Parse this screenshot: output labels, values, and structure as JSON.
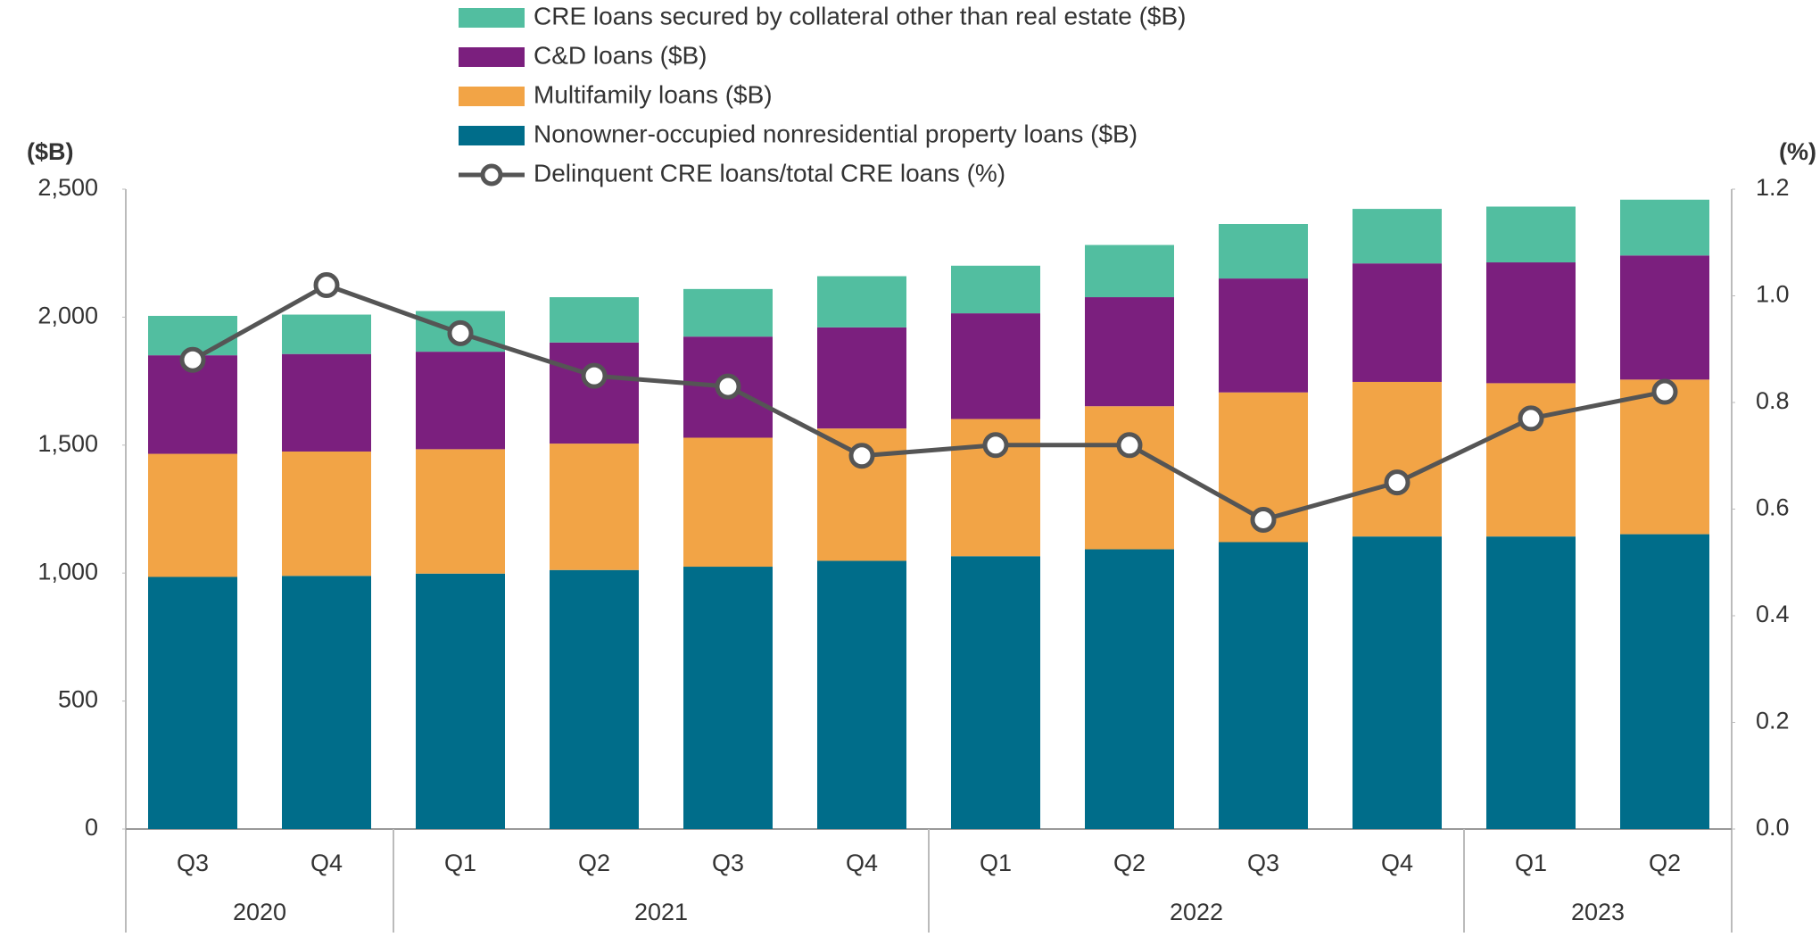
{
  "chart_data": {
    "type": "bar",
    "stacked": true,
    "y_axis_label": "($B)",
    "y2_axis_label": "(%)",
    "categories": [
      "Q3",
      "Q4",
      "Q1",
      "Q2",
      "Q3",
      "Q4",
      "Q1",
      "Q2",
      "Q3",
      "Q4",
      "Q1",
      "Q2"
    ],
    "years": [
      "2020",
      "2020",
      "2021",
      "2021",
      "2021",
      "2021",
      "2022",
      "2022",
      "2022",
      "2022",
      "2023",
      "2023"
    ],
    "ylim": [
      0,
      2500
    ],
    "yticks": [
      0,
      500,
      {
        "value": 1000,
        "label": "1,000"
      },
      {
        "value": 1500,
        "label": "1,500"
      },
      {
        "value": 2000,
        "label": "2,000"
      },
      {
        "value": 2500,
        "label": "2,500"
      }
    ],
    "y2lim": [
      0,
      1.2
    ],
    "y2ticks": [
      {
        "value": 0,
        "label": "0.0"
      },
      0.2,
      0.4,
      0.6,
      0.8,
      {
        "value": 1,
        "label": "1.0"
      },
      1.2
    ],
    "grid": false,
    "series": [
      {
        "name": "Nonowner-occupied nonresidential property loans ($B)",
        "color": "#006d8a",
        "values": [
          985,
          989,
          998,
          1012,
          1025,
          1048,
          1066,
          1093,
          1121,
          1143,
          1143,
          1152
        ]
      },
      {
        "name": "Multifamily loans ($B)",
        "color": "#f2a446",
        "values": [
          481,
          486,
          486,
          494,
          504,
          517,
          536,
          559,
          585,
          604,
          599,
          604
        ]
      },
      {
        "name": "C&D loans ($B)",
        "color": "#7b1f7e",
        "values": [
          385,
          381,
          381,
          395,
          395,
          395,
          413,
          426,
          445,
          463,
          472,
          485
        ]
      },
      {
        "name": "CRE loans secured by collateral other than real estate ($B)",
        "color": "#52bea0",
        "values": [
          154,
          154,
          159,
          177,
          186,
          200,
          186,
          204,
          213,
          213,
          218,
          218
        ]
      },
      {
        "name": "Delinquent CRE loans/total CRE loans (%)",
        "color": "#555555",
        "type": "line",
        "axis": "y2",
        "values": [
          0.88,
          1.02,
          0.93,
          0.85,
          0.83,
          0.7,
          0.72,
          0.72,
          0.58,
          0.65,
          0.77,
          0.82
        ]
      }
    ]
  }
}
